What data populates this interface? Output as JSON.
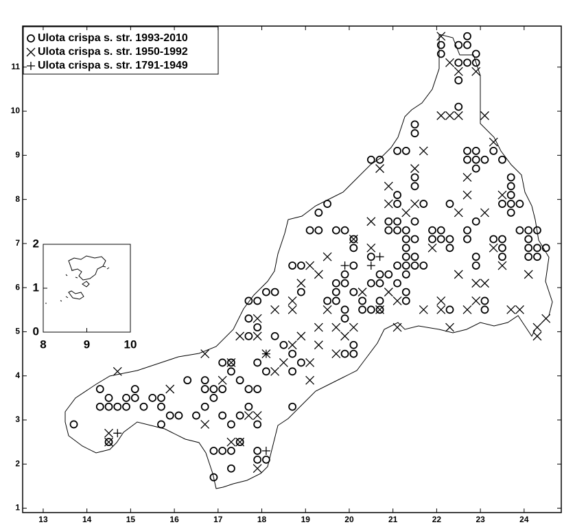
{
  "chart_data": [
    {
      "type": "scatter",
      "xlim": [
        12.53,
        24.85
      ],
      "ylim": [
        0.9,
        11.93
      ],
      "xticks": [
        13,
        14,
        15,
        16,
        17,
        18,
        19,
        20,
        21,
        22,
        23,
        24
      ],
      "yticks": [
        1,
        2,
        3,
        4,
        5,
        6,
        7,
        8,
        9,
        10,
        11
      ],
      "legend": "upper left",
      "series": [
        {
          "name": "Ulota crispa s. str. 1993-2010",
          "marker": "o",
          "color": "#000000",
          "x": [
            13.7,
            14.3,
            14.3,
            14.5,
            14.5,
            14.7,
            14.9,
            14.9,
            15.1,
            15.1,
            15.3,
            15.5,
            15.7,
            15.7,
            15.7,
            15.9,
            16.1,
            16.3,
            16.5,
            16.7,
            16.7,
            16.7,
            16.9,
            16.9,
            17.1,
            17.1,
            17.1,
            17.3,
            17.3,
            17.5,
            17.3,
            16.9,
            17.1,
            17.3,
            16.9,
            17.3,
            17.5,
            17.5,
            17.7,
            17.7,
            17.9,
            17.9,
            17.9,
            17.9,
            18.1,
            17.9,
            18.1,
            17.7,
            17.7,
            17.7,
            17.9,
            17.9,
            18.1,
            18.3,
            18.3,
            18.5,
            18.7,
            18.7,
            18.9,
            18.7,
            18.7,
            18.9,
            18.9,
            19.1,
            19.3,
            19.3,
            19.5,
            19.7,
            19.9,
            19.5,
            19.7,
            19.7,
            19.9,
            19.9,
            19.9,
            19.7,
            19.9,
            19.9,
            20.1,
            20.1,
            20.1,
            20.1,
            20.1,
            20.1,
            20.3,
            20.3,
            20.5,
            20.5,
            20.5,
            20.7,
            20.7,
            20.7,
            20.7,
            20.9,
            20.5,
            20.7,
            20.9,
            20.9,
            21.1,
            21.1,
            21.1,
            21.1,
            21.1,
            21.1,
            21.1,
            21.3,
            21.3,
            21.3,
            21.3,
            21.3,
            21.3,
            21.3,
            21.3,
            21.3,
            21.5,
            21.5,
            21.5,
            21.5,
            21.5,
            21.5,
            21.5,
            21.5,
            21.7,
            21.7,
            21.9,
            21.9,
            22.1,
            22.1,
            22.3,
            22.3,
            22.3,
            22.3,
            22.1,
            22.1,
            22.7,
            22.5,
            22.7,
            22.5,
            22.7,
            22.9,
            22.9,
            22.5,
            22.5,
            22.7,
            22.9,
            22.7,
            22.9,
            22.9,
            23.1,
            23.3,
            23.5,
            23.7,
            23.7,
            23.7,
            23.5,
            23.7,
            23.7,
            23.9,
            22.9,
            22.7,
            22.7,
            22.9,
            22.9,
            23.3,
            23.5,
            23.5,
            23.5,
            23.1,
            23.1,
            23.9,
            24.1,
            24.3,
            24.1,
            24.1,
            24.1,
            24.3,
            24.3,
            24.5,
            14.5
          ],
          "values": [
            2.9,
            3.7,
            3.3,
            3.5,
            3.3,
            3.3,
            3.5,
            3.3,
            3.7,
            3.5,
            3.3,
            3.5,
            3.5,
            3.3,
            2.9,
            3.1,
            3.1,
            3.9,
            3.1,
            3.9,
            3.7,
            3.3,
            3.7,
            3.5,
            4.3,
            3.7,
            3.1,
            4.3,
            4.1,
            3.9,
            2.9,
            2.3,
            2.3,
            2.3,
            1.7,
            1.9,
            2.5,
            3.1,
            3.3,
            3.7,
            3.7,
            2.9,
            2.3,
            2.1,
            2.1,
            4.3,
            4.1,
            4.9,
            5.3,
            5.7,
            5.7,
            5.1,
            5.9,
            5.9,
            4.9,
            4.7,
            4.5,
            4.1,
            4.3,
            3.3,
            6.5,
            6.5,
            5.9,
            7.3,
            7.3,
            7.7,
            7.9,
            7.3,
            7.3,
            5.7,
            5.9,
            6.1,
            6.1,
            6.3,
            5.5,
            5.7,
            5.3,
            4.5,
            4.5,
            4.7,
            5.9,
            6.5,
            6.9,
            7.1,
            5.7,
            5.5,
            5.5,
            6.1,
            6.7,
            6.1,
            6.3,
            5.7,
            5.5,
            6.3,
            8.9,
            8.9,
            7.5,
            7.3,
            8.1,
            7.9,
            7.5,
            7.3,
            6.5,
            6.1,
            9.1,
            9.1,
            7.3,
            7.1,
            6.9,
            6.7,
            6.5,
            6.3,
            5.7,
            5.9,
            9.7,
            9.5,
            8.5,
            8.3,
            7.5,
            7.1,
            6.7,
            6.5,
            7.9,
            6.5,
            7.3,
            7.1,
            7.3,
            7.1,
            7.1,
            6.9,
            7.9,
            5.5,
            11.5,
            11.3,
            11.7,
            11.5,
            11.5,
            11.1,
            11.1,
            11.3,
            11.1,
            10.7,
            10.1,
            9.1,
            9.1,
            8.9,
            8.9,
            8.7,
            8.9,
            9.1,
            8.9,
            8.5,
            8.3,
            8.1,
            7.9,
            7.9,
            7.7,
            7.9,
            7.5,
            7.3,
            7.1,
            6.7,
            6.5,
            7.1,
            7.1,
            6.9,
            6.7,
            5.7,
            5.5,
            7.3,
            7.3,
            7.3,
            7.1,
            6.9,
            6.7,
            6.7,
            6.9,
            6.9,
            2.5
          ]
        },
        {
          "name": "Ulota crispa s. str. 1950-1992",
          "marker": "x",
          "color": "#000000",
          "x": [
            14.5,
            14.7,
            14.5,
            15.9,
            16.7,
            16.7,
            17.1,
            17.3,
            17.3,
            17.5,
            17.9,
            17.7,
            17.9,
            17.5,
            17.9,
            17.9,
            18.1,
            18.3,
            18.3,
            18.5,
            18.7,
            18.7,
            18.7,
            18.9,
            18.9,
            19.1,
            19.1,
            19.1,
            19.3,
            19.3,
            19.3,
            19.5,
            19.5,
            19.7,
            19.7,
            19.9,
            20.1,
            20.1,
            20.3,
            20.5,
            20.5,
            20.7,
            20.9,
            20.9,
            20.7,
            20.9,
            21.1,
            21.1,
            21.3,
            21.5,
            21.5,
            21.7,
            21.7,
            21.9,
            22.1,
            22.1,
            22.1,
            22.1,
            22.3,
            22.3,
            22.5,
            22.5,
            22.3,
            22.5,
            22.7,
            22.7,
            22.9,
            22.9,
            23.1,
            23.1,
            23.3,
            23.3,
            23.5,
            23.5,
            23.7,
            23.9,
            24.1,
            24.3,
            24.5,
            24.3,
            22.9,
            22.7,
            23.1,
            22.5
          ],
          "values": [
            2.5,
            4.1,
            2.7,
            3.7,
            4.5,
            2.9,
            3.9,
            4.3,
            2.5,
            2.5,
            1.9,
            3.1,
            3.1,
            4.9,
            5.3,
            4.9,
            4.5,
            4.1,
            5.5,
            4.3,
            5.5,
            5.7,
            4.7,
            6.1,
            4.9,
            6.5,
            4.3,
            3.9,
            6.3,
            5.1,
            4.7,
            6.7,
            5.5,
            4.5,
            5.1,
            4.9,
            5.1,
            7.1,
            5.9,
            7.5,
            6.9,
            8.7,
            8.3,
            7.9,
            5.5,
            5.9,
            5.7,
            5.1,
            7.7,
            8.7,
            7.9,
            9.1,
            5.5,
            6.9,
            9.9,
            11.7,
            5.7,
            5.5,
            9.9,
            11.1,
            9.9,
            10.9,
            5.1,
            6.3,
            8.5,
            8.1,
            10.9,
            6.1,
            9.9,
            7.7,
            9.3,
            6.9,
            6.5,
            8.1,
            5.5,
            5.5,
            6.3,
            5.1,
            5.3,
            4.9,
            5.7,
            5.5,
            6.1,
            7.7
          ]
        },
        {
          "name": "Ulota crispa s. str. 1791-1949",
          "marker": "+",
          "color": "#000000",
          "x": [
            14.7,
            19.9,
            20.5,
            20.7,
            18.1,
            18.1
          ],
          "values": [
            2.7,
            6.5,
            6.5,
            6.7,
            2.3,
            4.5
          ]
        }
      ]
    },
    {
      "type": "scatter",
      "xlim": [
        8,
        10
      ],
      "ylim": [
        0,
        2
      ],
      "xticks": [
        8,
        9,
        10
      ],
      "yticks": [
        0,
        1,
        2
      ]
    }
  ]
}
